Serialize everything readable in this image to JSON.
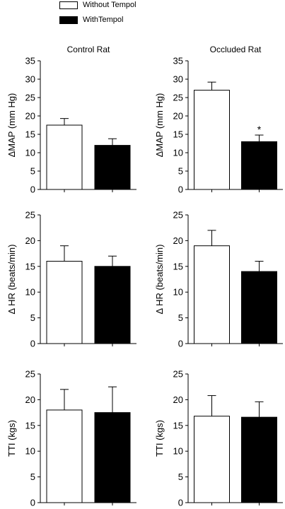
{
  "legend": [
    {
      "label": "Without Tempol",
      "color": "#ffffff"
    },
    {
      "label": "WithTempol",
      "color": "#000000"
    }
  ],
  "columns": [
    "Control Rat",
    "Occluded Rat"
  ],
  "chart_data": [
    {
      "type": "bar",
      "panel": "Control Rat",
      "ylabel": "ΔMAP (mm Hg)",
      "ylim": [
        0,
        35
      ],
      "yticks": [
        0,
        5,
        10,
        15,
        20,
        25,
        30,
        35
      ],
      "series": [
        {
          "name": "Without Tempol",
          "values": [
            17.5
          ],
          "errors": [
            1.8
          ]
        },
        {
          "name": "WithTempol",
          "values": [
            12.0
          ],
          "errors": [
            1.8
          ]
        }
      ],
      "annotations": []
    },
    {
      "type": "bar",
      "panel": "Occluded Rat",
      "ylabel": "ΔMAP (mm Hg)",
      "ylim": [
        0,
        35
      ],
      "yticks": [
        0,
        5,
        10,
        15,
        20,
        25,
        30,
        35
      ],
      "series": [
        {
          "name": "Without Tempol",
          "values": [
            27.0
          ],
          "errors": [
            2.2
          ]
        },
        {
          "name": "WithTempol",
          "values": [
            13.0
          ],
          "errors": [
            1.8
          ]
        }
      ],
      "annotations": [
        "*"
      ]
    },
    {
      "type": "bar",
      "panel": "Control Rat",
      "ylabel": "Δ HR (beats/min)",
      "ylim": [
        0,
        25
      ],
      "yticks": [
        0,
        5,
        10,
        15,
        20,
        25
      ],
      "series": [
        {
          "name": "Without Tempol",
          "values": [
            16.0
          ],
          "errors": [
            3.0
          ]
        },
        {
          "name": "WithTempol",
          "values": [
            15.0
          ],
          "errors": [
            2.0
          ]
        }
      ],
      "annotations": []
    },
    {
      "type": "bar",
      "panel": "Occluded Rat",
      "ylabel": "Δ HR (beats/min)",
      "ylim": [
        0,
        25
      ],
      "yticks": [
        0,
        5,
        10,
        15,
        20,
        25
      ],
      "series": [
        {
          "name": "Without Tempol",
          "values": [
            19.0
          ],
          "errors": [
            3.0
          ]
        },
        {
          "name": "WithTempol",
          "values": [
            14.0
          ],
          "errors": [
            2.0
          ]
        }
      ],
      "annotations": []
    },
    {
      "type": "bar",
      "panel": "Control Rat",
      "ylabel": "TTI (kgs)",
      "ylim": [
        0,
        25
      ],
      "yticks": [
        0,
        5,
        10,
        15,
        20,
        25
      ],
      "series": [
        {
          "name": "Without Tempol",
          "values": [
            18.0
          ],
          "errors": [
            4.0
          ]
        },
        {
          "name": "WithTempol",
          "values": [
            17.5
          ],
          "errors": [
            5.0
          ]
        }
      ],
      "annotations": []
    },
    {
      "type": "bar",
      "panel": "Occluded Rat",
      "ylabel": "TTI (kgs)",
      "ylim": [
        0,
        25
      ],
      "yticks": [
        0,
        5,
        10,
        15,
        20,
        25
      ],
      "series": [
        {
          "name": "Without Tempol",
          "values": [
            16.8
          ],
          "errors": [
            4.0
          ]
        },
        {
          "name": "WithTempol",
          "values": [
            16.6
          ],
          "errors": [
            3.0
          ]
        }
      ],
      "annotations": []
    }
  ]
}
